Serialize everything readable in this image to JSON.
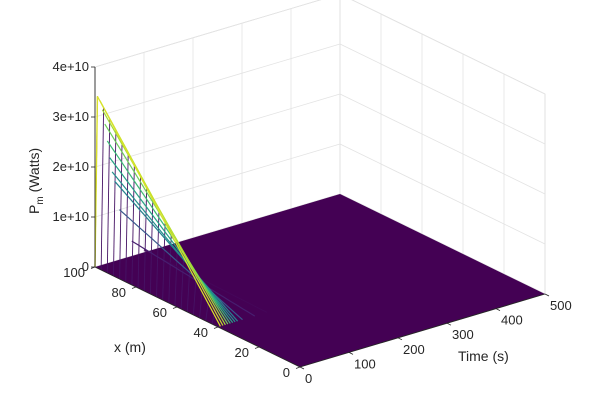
{
  "chart_data": {
    "type": "surface",
    "title": "",
    "xlabel": "Time (s)",
    "ylabel": "x (m)",
    "zlabel": {
      "main": "P",
      "sub": "m",
      "rest": " (Watts)"
    },
    "x_range": [
      0,
      500
    ],
    "y_range": [
      0,
      100
    ],
    "z_range": [
      0,
      40000000000
    ],
    "x_ticks": [
      "0",
      "100",
      "200",
      "300",
      "400",
      "500"
    ],
    "y_ticks": [
      "0",
      "20",
      "40",
      "60",
      "80",
      "100"
    ],
    "z_ticks": [
      "0",
      "1e+10",
      "2e+10",
      "3e+10",
      "4e+10"
    ],
    "colormap": "viridis",
    "grid": true,
    "series": [
      {
        "description": "power surface over position x and time",
        "x": [
          0,
          5,
          10,
          15,
          20,
          25,
          30,
          35,
          40,
          50,
          75,
          100,
          200,
          300,
          400,
          500
        ],
        "peak_at_x100_by_time": [
          0,
          34000000000,
          33000000000,
          31000000000,
          28000000000,
          24500000000,
          21000000000,
          18000000000,
          16000000000,
          10000000000,
          3000000000,
          500000000,
          0,
          0,
          0,
          0
        ],
        "profile_shape": "decays linearly from x=100 to ~0 near x=40, ~0 elsewhere"
      }
    ]
  }
}
